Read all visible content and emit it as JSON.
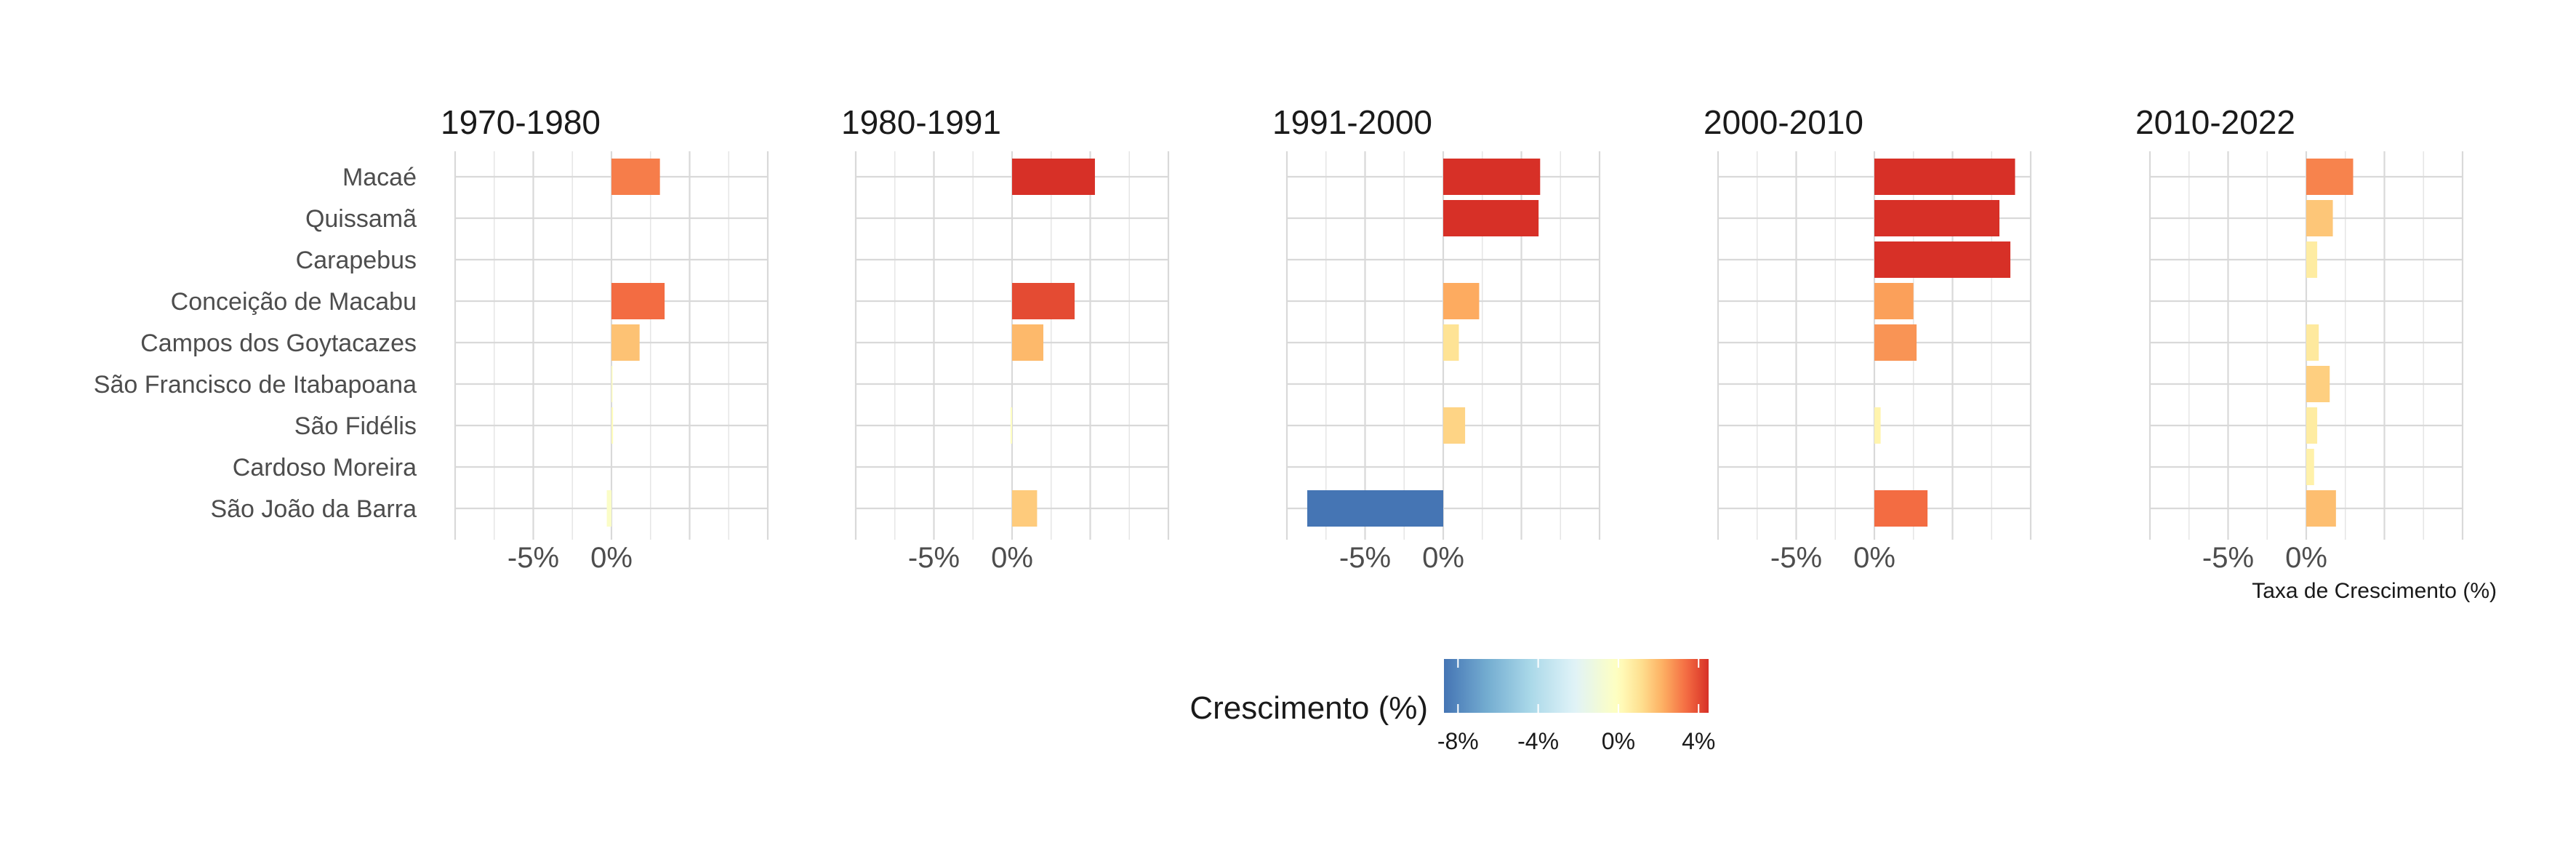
{
  "chart_data": {
    "type": "bar",
    "orientation": "horizontal",
    "categories": [
      "Macaé",
      "Quissamã",
      "Carapebus",
      "Conceição de Macabu",
      "Campos dos Goytacazes",
      "São Francisco de Itabapoana",
      "São Fidélis",
      "Cardoso Moreira",
      "São João da Barra"
    ],
    "panels": [
      {
        "title": "1970-1980",
        "values": [
          3.1,
          null,
          null,
          3.4,
          1.8,
          0.05,
          0.1,
          null,
          -0.3
        ]
      },
      {
        "title": "1980-1991",
        "values": [
          5.3,
          null,
          null,
          4.0,
          2.0,
          null,
          -0.1,
          null,
          1.6
        ]
      },
      {
        "title": "1991-2000",
        "values": [
          6.2,
          6.1,
          null,
          2.3,
          1.0,
          null,
          1.4,
          null,
          -8.7
        ]
      },
      {
        "title": "2000-2010",
        "values": [
          9.0,
          8.0,
          8.7,
          2.5,
          2.7,
          null,
          0.4,
          null,
          3.4
        ]
      },
      {
        "title": "2010-2022",
        "values": [
          3.0,
          1.7,
          0.7,
          null,
          0.8,
          1.5,
          0.7,
          0.5,
          1.9
        ]
      }
    ],
    "x_ticks": [
      {
        "value": -5,
        "label": "-5%"
      },
      {
        "value": 0,
        "label": "0%"
      }
    ],
    "xlim": [
      -10,
      10
    ],
    "xlabel": "Taxa de Crescimento (%)",
    "grid": true,
    "legend": {
      "title": "Crescimento (%)",
      "position": "bottom",
      "range": [
        -8.7,
        4.5
      ],
      "ticks": [
        {
          "value": -8,
          "label": "-8%"
        },
        {
          "value": -4,
          "label": "-4%"
        },
        {
          "value": 0,
          "label": "0%"
        },
        {
          "value": 4,
          "label": "4%"
        }
      ],
      "colors": [
        "#4575b4",
        "#74add1",
        "#abd9e9",
        "#e0f3f8",
        "#ffffbf",
        "#fee090",
        "#fdae61",
        "#f46d43",
        "#d73027"
      ]
    }
  }
}
